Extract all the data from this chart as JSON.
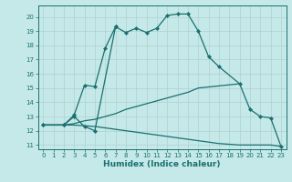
{
  "xlabel": "Humidex (Indice chaleur)",
  "xlim": [
    -0.5,
    23.5
  ],
  "ylim": [
    10.7,
    20.8
  ],
  "yticks": [
    11,
    12,
    13,
    14,
    15,
    16,
    17,
    18,
    19,
    20
  ],
  "xticks": [
    0,
    1,
    2,
    3,
    4,
    5,
    6,
    7,
    8,
    9,
    10,
    11,
    12,
    13,
    14,
    15,
    16,
    17,
    18,
    19,
    20,
    21,
    22,
    23
  ],
  "background_color": "#c5e8e8",
  "grid_color": "#b0d0d0",
  "line_color": "#1a7070",
  "line_width": 0.9,
  "marker": "D",
  "marker_size": 2.0,
  "curve1_x": [
    0,
    2,
    3,
    4,
    5,
    7,
    8,
    9,
    10,
    11,
    12,
    13,
    14,
    15,
    16,
    17,
    19,
    20,
    21,
    22,
    23
  ],
  "curve1_y": [
    12.4,
    12.4,
    13.0,
    12.3,
    12.0,
    19.3,
    18.9,
    19.2,
    18.9,
    19.2,
    20.1,
    20.2,
    20.2,
    19.0,
    17.2,
    16.5,
    15.3,
    13.5,
    13.0,
    12.9,
    10.9
  ],
  "curve2_x": [
    0,
    2,
    3,
    4,
    5,
    6,
    7
  ],
  "curve2_y": [
    12.4,
    12.4,
    13.1,
    15.2,
    15.1,
    17.8,
    19.3
  ],
  "curve3_x": [
    0,
    2,
    3,
    4,
    5,
    6,
    7,
    8,
    9,
    10,
    11,
    12,
    13,
    14,
    15,
    19
  ],
  "curve3_y": [
    12.4,
    12.4,
    12.5,
    12.7,
    12.8,
    13.0,
    13.2,
    13.5,
    13.7,
    13.9,
    14.1,
    14.3,
    14.5,
    14.7,
    15.0,
    15.3
  ],
  "curve4_x": [
    0,
    2,
    3,
    4,
    5,
    6,
    7,
    8,
    9,
    10,
    11,
    12,
    13,
    14,
    15,
    16,
    17,
    18,
    19,
    20,
    21,
    22,
    23
  ],
  "curve4_y": [
    12.4,
    12.4,
    12.4,
    12.35,
    12.3,
    12.2,
    12.1,
    12.0,
    11.9,
    11.8,
    11.7,
    11.6,
    11.5,
    11.4,
    11.3,
    11.2,
    11.1,
    11.05,
    11.0,
    11.0,
    11.0,
    11.0,
    10.9
  ]
}
